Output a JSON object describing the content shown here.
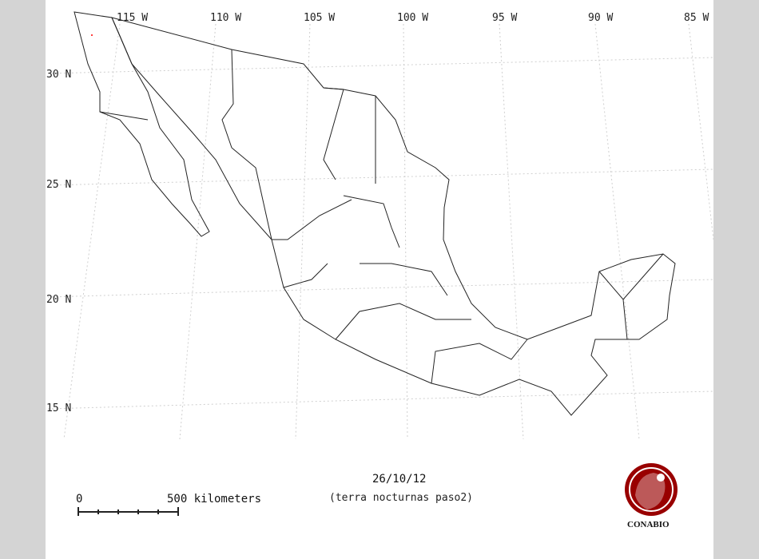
{
  "map": {
    "longitude_labels": [
      "115 W",
      "110 W",
      "105 W",
      "100 W",
      "95 W",
      "90 W",
      "85 W"
    ],
    "latitude_labels": [
      "30 N",
      "25 N",
      "20 N",
      "15 N"
    ],
    "date": "26/10/12",
    "subtitle": "(terra nocturnas paso2)",
    "scale_bar": {
      "start_label": "0",
      "end_label": "500 kilometers"
    },
    "logo": {
      "text": "CONABIO",
      "color": "#990000"
    },
    "colors": {
      "outline": "#222222",
      "grid": "#cccccc",
      "background": "#ffffff",
      "frame": "#d4d4d4",
      "hotspot": "#ff0000"
    }
  }
}
